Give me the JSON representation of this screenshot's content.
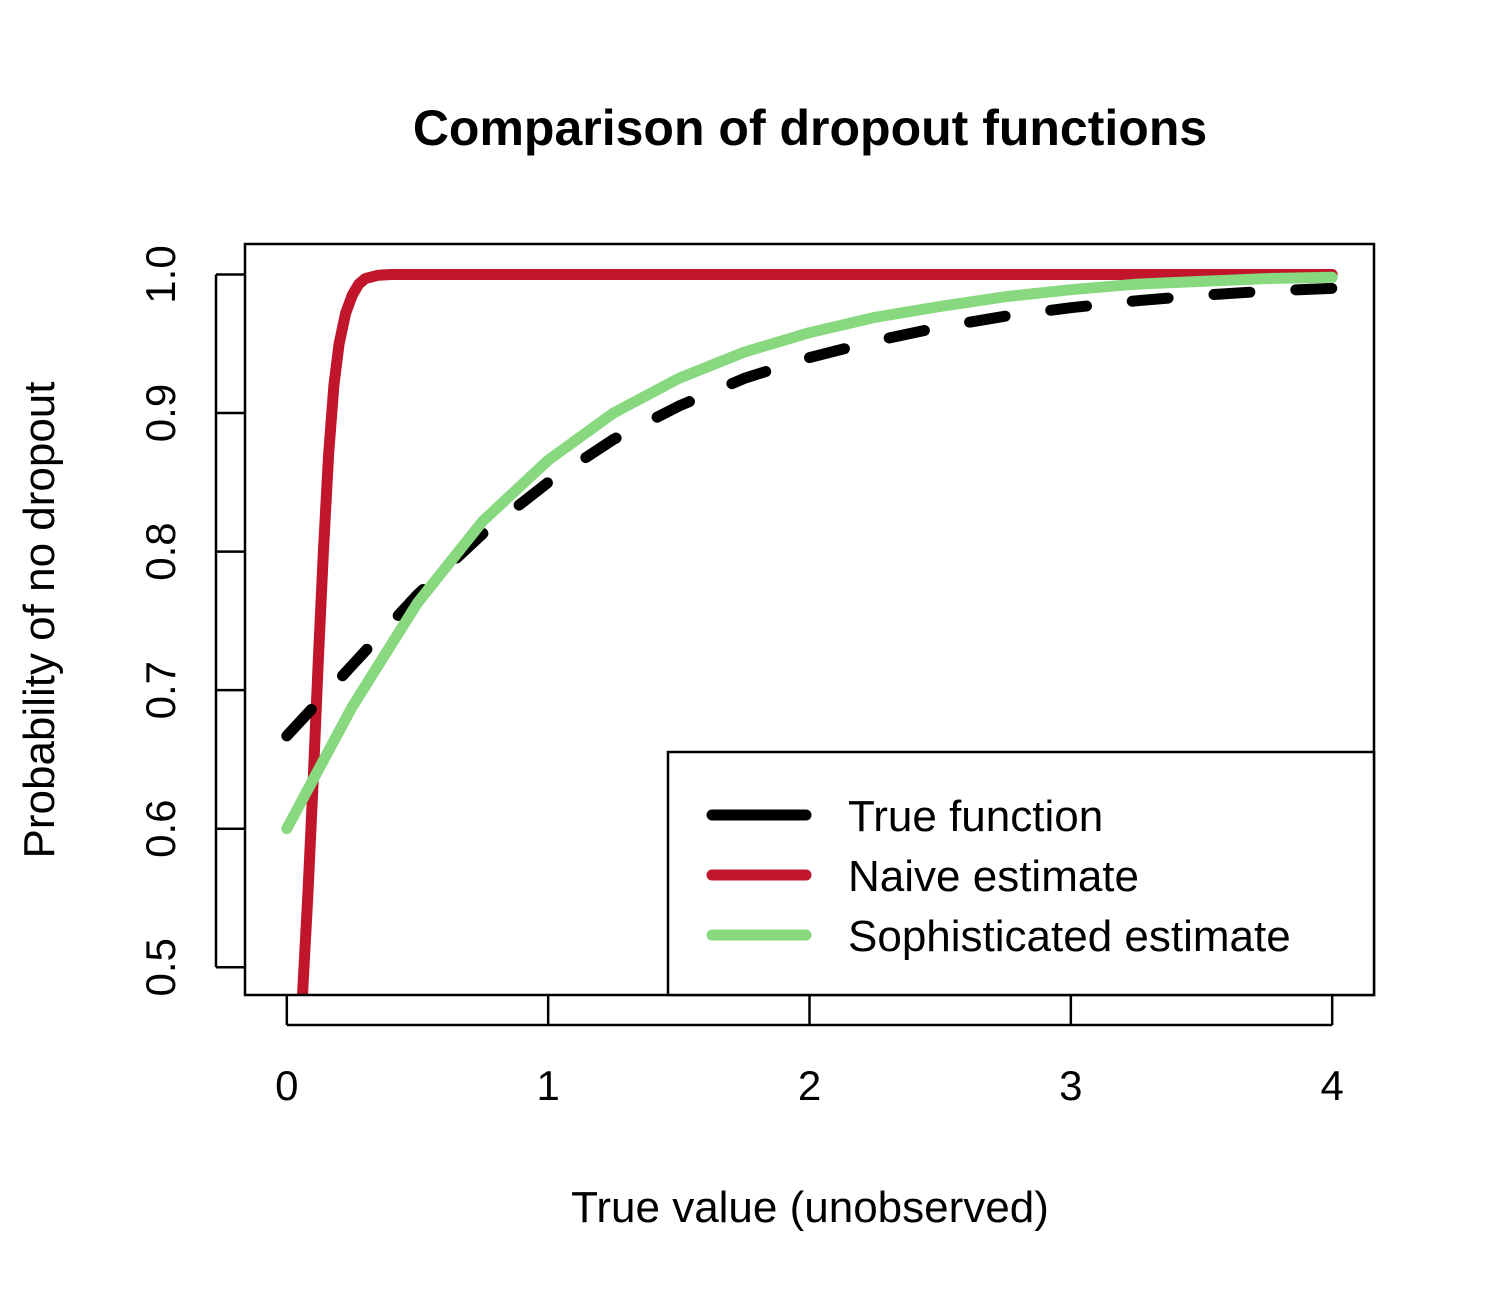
{
  "chart_data": {
    "type": "line",
    "title": "Comparison of dropout functions",
    "xlabel": "True value (unobserved)",
    "ylabel": "Probability of no dropout",
    "xlim": [
      -0.16,
      4.16
    ],
    "ylim": [
      0.48,
      1.022
    ],
    "x_ticks": [
      0,
      1,
      2,
      3,
      4
    ],
    "x_tick_labels": [
      "0",
      "1",
      "2",
      "3",
      "4"
    ],
    "y_ticks": [
      0.5,
      0.6,
      0.7,
      0.8,
      0.9,
      1.0
    ],
    "y_tick_labels": [
      "0.5",
      "0.6",
      "0.7",
      "0.8",
      "0.9",
      "1.0"
    ],
    "grid": false,
    "legend_position": "bottom-right",
    "series": [
      {
        "name": "True function",
        "color": "#000000",
        "dash": "dashed",
        "x": [
          0,
          0.25,
          0.5,
          0.75,
          1.0,
          1.25,
          1.5,
          1.75,
          2.0,
          2.25,
          2.5,
          2.75,
          3.0,
          3.25,
          3.5,
          3.75,
          4.0
        ],
        "y": [
          0.667,
          0.718,
          0.769,
          0.813,
          0.85,
          0.881,
          0.905,
          0.925,
          0.94,
          0.952,
          0.962,
          0.97,
          0.976,
          0.981,
          0.985,
          0.988,
          0.99
        ]
      },
      {
        "name": "Naive estimate",
        "color": "#C0152A",
        "dash": "solid",
        "x": [
          0.06,
          0.08,
          0.1,
          0.12,
          0.14,
          0.16,
          0.18,
          0.2,
          0.225,
          0.25,
          0.275,
          0.3,
          0.35,
          0.4,
          0.45,
          0.5,
          1.0,
          2.0,
          3.0,
          4.0
        ],
        "y": [
          0.48,
          0.55,
          0.63,
          0.72,
          0.8,
          0.87,
          0.92,
          0.95,
          0.972,
          0.985,
          0.993,
          0.997,
          0.9995,
          1.0,
          1.0,
          1.0,
          1.0,
          1.0,
          1.0,
          1.0
        ]
      },
      {
        "name": "Sophisticated estimate",
        "color": "#88D880",
        "dash": "solid",
        "x": [
          0,
          0.25,
          0.5,
          0.75,
          1.0,
          1.25,
          1.5,
          1.75,
          2.0,
          2.25,
          2.5,
          2.75,
          3.0,
          3.25,
          3.5,
          3.75,
          4.0
        ],
        "y": [
          0.6,
          0.688,
          0.763,
          0.822,
          0.866,
          0.9,
          0.925,
          0.944,
          0.958,
          0.969,
          0.977,
          0.984,
          0.989,
          0.993,
          0.995,
          0.997,
          0.998
        ]
      }
    ]
  }
}
